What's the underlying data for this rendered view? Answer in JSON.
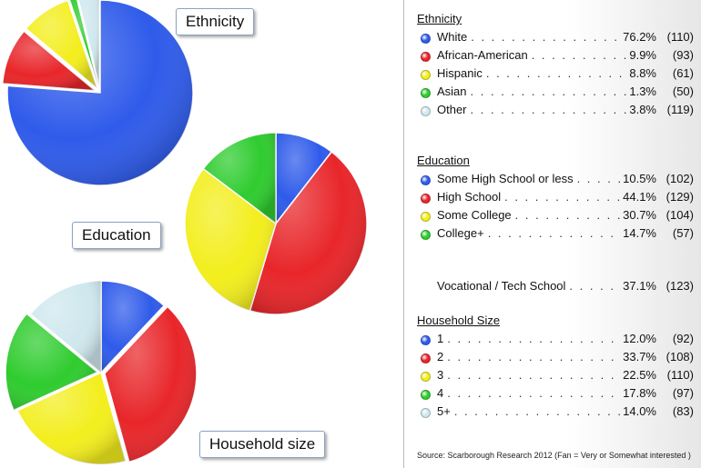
{
  "chart_data": [
    {
      "type": "pie",
      "title": "Ethnicity",
      "categories": [
        "White",
        "African-American",
        "Hispanic",
        "Asian",
        "Other"
      ],
      "values": [
        76.2,
        9.9,
        8.8,
        1.3,
        3.8
      ],
      "counts": [
        "(110)",
        "(93)",
        "(61)",
        "(50)",
        "(119)"
      ],
      "colors": [
        "#2f5bea",
        "#e8262a",
        "#f3ee1d",
        "#2fcc2f",
        "#cfe8ee"
      ]
    },
    {
      "type": "pie",
      "title": "Education",
      "categories": [
        "Some High School or less",
        "High School",
        "Some College",
        "College+"
      ],
      "values": [
        10.5,
        44.1,
        30.7,
        14.7
      ],
      "counts": [
        "(102)",
        "(129)",
        "(104)",
        "(57)"
      ],
      "colors": [
        "#2f5bea",
        "#e8262a",
        "#f3ee1d",
        "#2fcc2f"
      ],
      "extra": {
        "label": "Vocational / Tech School",
        "value": 37.1,
        "count": "(123)"
      }
    },
    {
      "type": "pie",
      "title": "Household Size",
      "callout_title": "Household size",
      "categories": [
        "1",
        "2",
        "3",
        "4",
        "5+"
      ],
      "values": [
        12.0,
        33.7,
        22.5,
        17.8,
        14.0
      ],
      "counts": [
        "(92)",
        "(108)",
        "(110)",
        "(97)",
        "(83)"
      ],
      "colors": [
        "#2f5bea",
        "#e8262a",
        "#f3ee1d",
        "#2fcc2f",
        "#cfe8ee"
      ]
    }
  ],
  "source": "Source: Scarborough Research 2012 (Fan = Very or Somewhat interested )"
}
